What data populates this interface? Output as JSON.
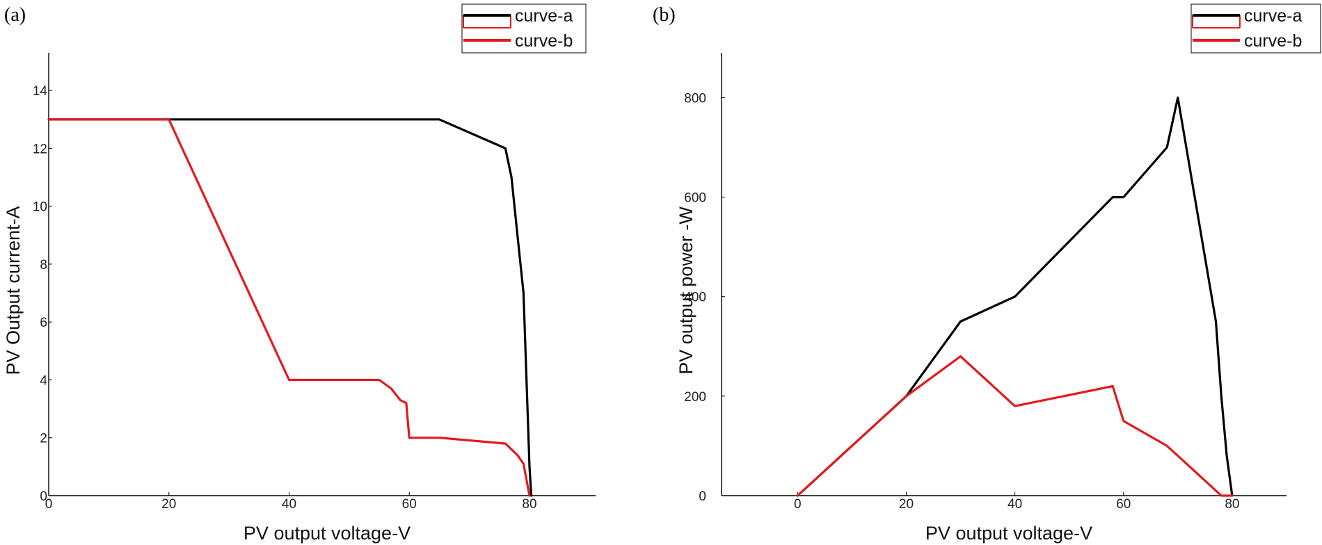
{
  "chart_data": [
    {
      "type": "line",
      "panel_label": "(a)",
      "xlabel": "PV output voltage-V",
      "ylabel": "PV Output current-A",
      "xlim": [
        0,
        91
      ],
      "ylim": [
        0,
        15.3
      ],
      "xticks": [
        0,
        20,
        40,
        60,
        80
      ],
      "yticks": [
        0,
        2,
        4,
        6,
        8,
        10,
        12,
        14
      ],
      "legend_position": "top-right",
      "series": [
        {
          "name": "curve-a",
          "color": "#000000",
          "points": [
            [
              0,
              13
            ],
            [
              20,
              13
            ],
            [
              65,
              13
            ],
            [
              76,
              12
            ],
            [
              77,
              11
            ],
            [
              78,
              9
            ],
            [
              79,
              7
            ],
            [
              79.5,
              4
            ],
            [
              80,
              1
            ],
            [
              80.3,
              0
            ]
          ]
        },
        {
          "name": "curve-b",
          "color": "#e31a1c",
          "points": [
            [
              0,
              13
            ],
            [
              20,
              13
            ],
            [
              40,
              4
            ],
            [
              55,
              4
            ],
            [
              57,
              3.7
            ],
            [
              58.5,
              3.3
            ],
            [
              59.5,
              3.2
            ],
            [
              60,
              2
            ],
            [
              65,
              2
            ],
            [
              76,
              1.8
            ],
            [
              78,
              1.4
            ],
            [
              79,
              1.1
            ],
            [
              80,
              0
            ]
          ]
        }
      ]
    },
    {
      "type": "line",
      "panel_label": "(b)",
      "xlabel": "PV output voltage-V",
      "ylabel": "PV output power -W",
      "xlim": [
        -14,
        90
      ],
      "ylim": [
        0,
        890
      ],
      "xticks": [
        0,
        20,
        40,
        60,
        80
      ],
      "yticks": [
        0,
        200,
        400,
        600,
        800
      ],
      "legend_position": "top-right",
      "series": [
        {
          "name": "curve-a",
          "color": "#000000",
          "points": [
            [
              0,
              0
            ],
            [
              20,
              200
            ],
            [
              30,
              350
            ],
            [
              40,
              400
            ],
            [
              58,
              600
            ],
            [
              60,
              600
            ],
            [
              68,
              700
            ],
            [
              70,
              800
            ],
            [
              77,
              350
            ],
            [
              78,
              200
            ],
            [
              79,
              80
            ],
            [
              80,
              0
            ]
          ]
        },
        {
          "name": "curve-b",
          "color": "#e31a1c",
          "points": [
            [
              0,
              0
            ],
            [
              20,
              200
            ],
            [
              30,
              280
            ],
            [
              40,
              180
            ],
            [
              58,
              220
            ],
            [
              60,
              150
            ],
            [
              68,
              100
            ],
            [
              72,
              60
            ],
            [
              78,
              0
            ],
            [
              80,
              0
            ]
          ]
        }
      ]
    }
  ]
}
